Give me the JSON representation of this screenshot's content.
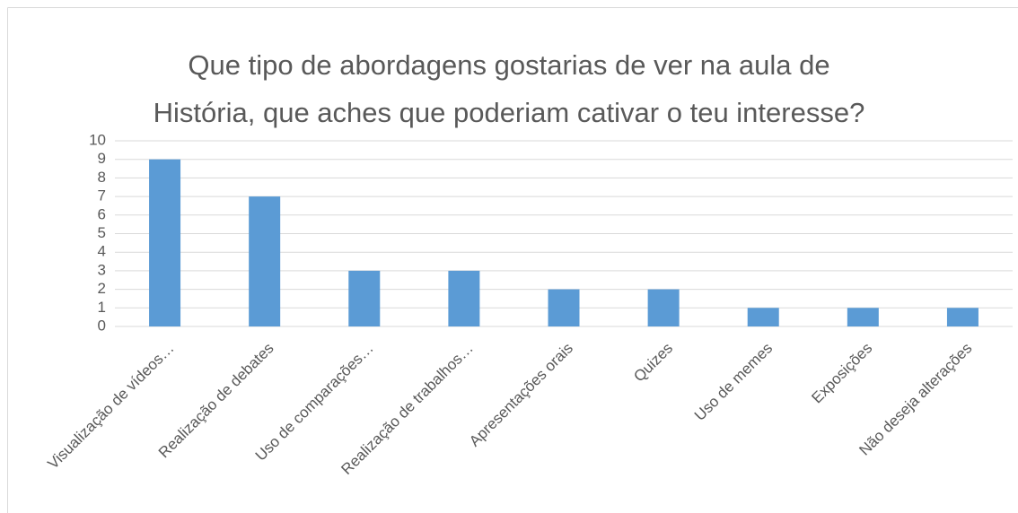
{
  "chart_data": {
    "type": "bar",
    "title": [
      "Que tipo de abordagens gostarias de ver na aula de",
      "História, que aches que poderiam cativar o teu interesse?"
    ],
    "categories": [
      "Visualização de vídeos…",
      "Realização de debates",
      "Uso de comparações…",
      "Realização de trabalhos…",
      "Apresentações orais",
      "Quizes",
      "Uso de memes",
      "Exposições",
      "Não deseja alterações"
    ],
    "values": [
      9,
      7,
      3,
      3,
      2,
      2,
      1,
      1,
      1
    ],
    "color": "#5b9bd5",
    "ylim": [
      0,
      10
    ],
    "yticks": [
      0,
      1,
      2,
      3,
      4,
      5,
      6,
      7,
      8,
      9,
      10
    ],
    "grid": true
  }
}
